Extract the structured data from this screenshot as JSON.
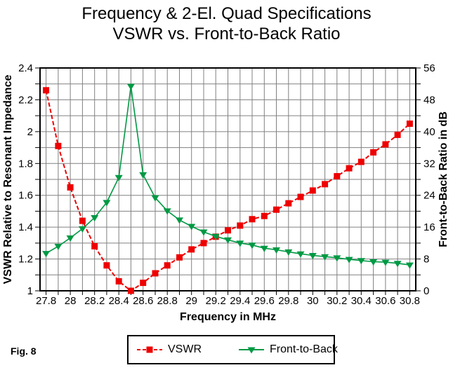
{
  "title": {
    "line1": "Frequency & 2-El. Quad Specifications",
    "line2": "VSWR vs. Front-to-Back Ratio"
  },
  "figure_label": "Fig. 8",
  "colors": {
    "vswr_red": "#ee0000",
    "front_to_back_green": "#009944",
    "grid": "#808080",
    "frame": "#000000",
    "background": "#ffffff",
    "text": "#000000"
  },
  "legend": {
    "items": [
      {
        "label": "VSWR",
        "color": "#ee0000",
        "marker": "square",
        "line_style": "dashed"
      },
      {
        "label": "Front-to-Back",
        "color": "#009944",
        "marker": "triangle-down",
        "line_style": "solid"
      }
    ]
  },
  "chart_data": {
    "type": "line",
    "title": "Frequency & 2-El. Quad Specifications — VSWR vs. Front-to-Back Ratio",
    "xlabel": "Frequency in MHz",
    "ylabel_left": "VSWR Relative to Resonant Impedance",
    "ylabel_right": "Front-to-Back Ratio in dB",
    "x_range": [
      27.8,
      30.8
    ],
    "x_edge_padding": 0.05,
    "ylim_left": [
      1,
      2.4
    ],
    "ylim_right": [
      0,
      56
    ],
    "grid": true,
    "grid_color": "#808080",
    "x_grid_step": 0.1,
    "y_grid_step_left": 0.1,
    "y_grid_step_right_db": 4,
    "legend_position": "bottom",
    "x_ticks": {
      "values": [
        27.8,
        28,
        28.2,
        28.4,
        28.6,
        28.8,
        29,
        29.2,
        29.4,
        29.6,
        29.8,
        30,
        30.2,
        30.4,
        30.6,
        30.8
      ],
      "labels": [
        "27.8",
        "28",
        "28.2",
        "28.4",
        "28.6",
        "28.8",
        "29",
        "29.2",
        "29.4",
        "29.6",
        "29.8",
        "30",
        "30.2",
        "30.4",
        "30.6",
        "30.8"
      ]
    },
    "y_ticks_left": {
      "values": [
        1,
        1.2,
        1.4,
        1.6,
        1.8,
        2,
        2.2,
        2.4
      ],
      "labels": [
        "1",
        "1.2",
        "1.4",
        "1.6",
        "1.8",
        "2",
        "2.2",
        "2.4"
      ]
    },
    "y_ticks_right": {
      "values": [
        0,
        8,
        16,
        24,
        32,
        40,
        48,
        56
      ],
      "labels": [
        "0",
        "8",
        "16",
        "24",
        "32",
        "40",
        "48",
        "56"
      ]
    },
    "x": [
      27.8,
      27.9,
      28.0,
      28.1,
      28.2,
      28.3,
      28.4,
      28.5,
      28.6,
      28.7,
      28.8,
      28.9,
      29.0,
      29.1,
      29.2,
      29.3,
      29.4,
      29.5,
      29.6,
      29.7,
      29.8,
      29.9,
      30.0,
      30.1,
      30.2,
      30.3,
      30.4,
      30.5,
      30.6,
      30.7,
      30.8
    ],
    "series": [
      {
        "name": "VSWR",
        "axis": "left",
        "color": "#ee0000",
        "marker": "square",
        "line_style": "dashed",
        "values": [
          2.26,
          1.91,
          1.65,
          1.44,
          1.28,
          1.16,
          1.06,
          1.0,
          1.05,
          1.11,
          1.16,
          1.21,
          1.26,
          1.3,
          1.34,
          1.38,
          1.41,
          1.45,
          1.47,
          1.51,
          1.55,
          1.59,
          1.63,
          1.67,
          1.72,
          1.77,
          1.81,
          1.87,
          1.92,
          1.98,
          2.05
        ]
      },
      {
        "name": "Front-to-Back",
        "axis": "right",
        "color": "#009944",
        "marker": "triangle-down",
        "line_style": "solid",
        "values": [
          9.4,
          11.2,
          13.3,
          15.6,
          18.4,
          22.2,
          28.5,
          51.4,
          29.2,
          23.4,
          20.1,
          17.8,
          16.2,
          14.8,
          13.7,
          12.8,
          12.0,
          11.5,
          10.7,
          10.3,
          9.8,
          9.3,
          8.9,
          8.6,
          8.3,
          7.9,
          7.6,
          7.3,
          7.2,
          6.9,
          6.5
        ]
      }
    ]
  }
}
